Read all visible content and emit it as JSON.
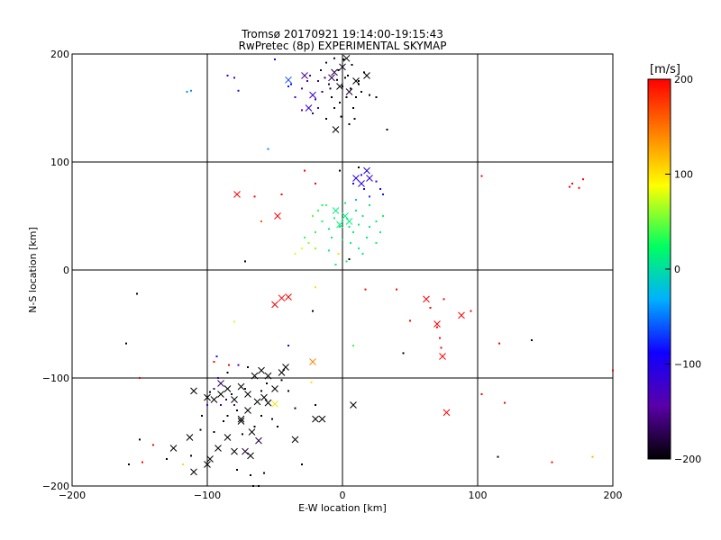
{
  "chart_data": {
    "type": "scatter",
    "title": "Tromsø 20170921 19:14:00-19:15:43",
    "subtitle": "RwPretec (8p) EXPERIMENTAL SKYMAP",
    "xlabel": "E-W location [km]",
    "ylabel": "N-S location [km]",
    "xlim": [
      -200,
      200
    ],
    "ylim": [
      -200,
      200
    ],
    "xticks": [
      -200,
      -100,
      0,
      100,
      200
    ],
    "yticks": [
      -200,
      -100,
      0,
      100,
      200
    ],
    "grid": true,
    "colorbar": {
      "label": "[m/s]",
      "range": [
        -200,
        200
      ],
      "ticks": [
        200,
        100,
        0,
        -100,
        -200
      ],
      "colors": [
        "#000000",
        "#5a00a8",
        "#1000ff",
        "#00b0ff",
        "#00ff60",
        "#ffff00",
        "#ff8000",
        "#ff0000"
      ]
    },
    "markers": {
      "large": "x",
      "small": "dot"
    },
    "points": [
      [
        3,
        196,
        -200,
        1
      ],
      [
        0,
        188,
        -190,
        1
      ],
      [
        -6,
        183,
        -175,
        1
      ],
      [
        10,
        175,
        -200,
        1
      ],
      [
        -2,
        170,
        -200,
        1
      ],
      [
        5,
        165,
        -185,
        1
      ],
      [
        -8,
        178,
        -170,
        1
      ],
      [
        -25,
        150,
        -110,
        1
      ],
      [
        -22,
        162,
        -120,
        1
      ],
      [
        -40,
        176,
        -60,
        1
      ],
      [
        -28,
        180,
        -150,
        1
      ],
      [
        -5,
        130,
        -200,
        1
      ],
      [
        18,
        180,
        -200,
        1
      ],
      [
        -3,
        185,
        -200,
        0
      ],
      [
        2,
        178,
        -200,
        0
      ],
      [
        -10,
        172,
        -185,
        0
      ],
      [
        6,
        168,
        -200,
        0
      ],
      [
        -15,
        165,
        -170,
        0
      ],
      [
        -20,
        158,
        -160,
        0
      ],
      [
        12,
        172,
        -200,
        0
      ],
      [
        -6,
        150,
        -190,
        0
      ],
      [
        -1,
        142,
        -200,
        0
      ],
      [
        8,
        150,
        -200,
        0
      ],
      [
        -12,
        192,
        -180,
        0
      ],
      [
        16,
        183,
        -200,
        0
      ],
      [
        -30,
        168,
        -140,
        0
      ],
      [
        -35,
        160,
        -115,
        0
      ],
      [
        -38,
        172,
        -90,
        0
      ],
      [
        20,
        162,
        -200,
        0
      ],
      [
        25,
        160,
        -200,
        0
      ],
      [
        -12,
        140,
        -200,
        0
      ],
      [
        33,
        130,
        -200,
        0
      ],
      [
        -50,
        195,
        -100,
        0
      ],
      [
        -80,
        178,
        -110,
        0
      ],
      [
        -85,
        180,
        -110,
        0
      ],
      [
        -115,
        165,
        -40,
        0
      ],
      [
        -112,
        166,
        -40,
        0
      ],
      [
        -77,
        166,
        -110,
        0
      ],
      [
        -55,
        112,
        -40,
        0
      ],
      [
        5,
        135,
        -200,
        0
      ],
      [
        -18,
        175,
        -160,
        0
      ],
      [
        -8,
        160,
        -200,
        0
      ],
      [
        0,
        170,
        -200,
        0
      ],
      [
        4,
        180,
        -200,
        0
      ],
      [
        -4,
        176,
        -200,
        0
      ],
      [
        10,
        160,
        -200,
        0
      ],
      [
        -16,
        185,
        -180,
        0
      ],
      [
        -2,
        155,
        -200,
        0
      ],
      [
        14,
        165,
        -200,
        0
      ],
      [
        -22,
        145,
        -170,
        0
      ],
      [
        -26,
        175,
        -150,
        0
      ],
      [
        1,
        195,
        -195,
        0
      ],
      [
        7,
        190,
        -200,
        0
      ],
      [
        -9,
        168,
        -190,
        0
      ],
      [
        -13,
        178,
        -170,
        0
      ],
      [
        3,
        160,
        -200,
        0
      ],
      [
        -6,
        196,
        -190,
        0
      ],
      [
        -30,
        148,
        -140,
        0
      ],
      [
        -40,
        170,
        -80,
        0
      ],
      [
        -18,
        150,
        -110,
        0
      ],
      [
        12,
        175,
        -200,
        0
      ],
      [
        -24,
        180,
        -150,
        0
      ],
      [
        9,
        140,
        -200,
        0
      ],
      [
        14,
        80,
        -110,
        1
      ],
      [
        20,
        85,
        -110,
        1
      ],
      [
        10,
        85,
        -110,
        1
      ],
      [
        18,
        92,
        -100,
        1
      ],
      [
        14,
        88,
        -110,
        0
      ],
      [
        8,
        80,
        -100,
        0
      ],
      [
        16,
        75,
        -100,
        0
      ],
      [
        25,
        82,
        -110,
        0
      ],
      [
        28,
        75,
        -90,
        0
      ],
      [
        30,
        70,
        -80,
        0
      ],
      [
        -2,
        92,
        -200,
        0
      ],
      [
        12,
        95,
        -200,
        0
      ],
      [
        20,
        68,
        -70,
        0
      ],
      [
        2,
        50,
        20,
        1
      ],
      [
        5,
        45,
        20,
        1
      ],
      [
        -2,
        42,
        20,
        1
      ],
      [
        -5,
        55,
        20,
        1
      ],
      [
        0,
        45,
        20,
        0
      ],
      [
        5,
        40,
        20,
        0
      ],
      [
        -10,
        38,
        10,
        0
      ],
      [
        8,
        35,
        20,
        0
      ],
      [
        15,
        50,
        20,
        0
      ],
      [
        20,
        40,
        20,
        0
      ],
      [
        -15,
        45,
        30,
        0
      ],
      [
        10,
        55,
        20,
        0
      ],
      [
        -8,
        30,
        20,
        0
      ],
      [
        18,
        30,
        20,
        0
      ],
      [
        25,
        25,
        30,
        0
      ],
      [
        12,
        20,
        20,
        0
      ],
      [
        0,
        28,
        20,
        0
      ],
      [
        -20,
        35,
        40,
        0
      ],
      [
        -25,
        25,
        60,
        0
      ],
      [
        -30,
        20,
        80,
        0
      ],
      [
        -12,
        60,
        40,
        0
      ],
      [
        -3,
        15,
        100,
        0
      ],
      [
        3,
        8,
        20,
        0
      ],
      [
        -5,
        5,
        20,
        0
      ],
      [
        28,
        35,
        20,
        0
      ],
      [
        30,
        50,
        30,
        0
      ],
      [
        20,
        60,
        10,
        0
      ],
      [
        -18,
        55,
        40,
        0
      ],
      [
        -6,
        48,
        20,
        0
      ],
      [
        6,
        25,
        20,
        0
      ],
      [
        15,
        15,
        20,
        0
      ],
      [
        -22,
        50,
        50,
        0
      ],
      [
        -15,
        60,
        30,
        0
      ],
      [
        10,
        65,
        -20,
        0
      ],
      [
        25,
        45,
        20,
        0
      ],
      [
        -10,
        18,
        20,
        0
      ],
      [
        2,
        62,
        20,
        0
      ],
      [
        -28,
        30,
        40,
        0
      ],
      [
        -20,
        20,
        60,
        0
      ],
      [
        -35,
        15,
        80,
        0
      ],
      [
        -2,
        40,
        20,
        0
      ],
      [
        12,
        42,
        20,
        0
      ],
      [
        -78,
        70,
        200,
        1
      ],
      [
        -48,
        50,
        200,
        1
      ],
      [
        -65,
        68,
        200,
        0
      ],
      [
        -60,
        45,
        160,
        0
      ],
      [
        -45,
        70,
        200,
        0
      ],
      [
        -28,
        92,
        200,
        0
      ],
      [
        -20,
        80,
        200,
        0
      ],
      [
        -72,
        8,
        -200,
        0
      ],
      [
        5,
        10,
        -200,
        0
      ],
      [
        103,
        87,
        200,
        0
      ],
      [
        170,
        80,
        200,
        0
      ],
      [
        178,
        84,
        200,
        0
      ],
      [
        175,
        76,
        200,
        0
      ],
      [
        168,
        77,
        200,
        0
      ],
      [
        -50,
        -32,
        200,
        1
      ],
      [
        -45,
        -26,
        200,
        1
      ],
      [
        -40,
        -25,
        200,
        1
      ],
      [
        62,
        -27,
        200,
        1
      ],
      [
        70,
        -50,
        200,
        1
      ],
      [
        88,
        -42,
        200,
        1
      ],
      [
        74,
        -80,
        200,
        1
      ],
      [
        77,
        -132,
        200,
        1
      ],
      [
        -22,
        -85,
        140,
        1
      ],
      [
        -20,
        -16,
        100,
        0
      ],
      [
        -22,
        -38,
        -200,
        0
      ],
      [
        17,
        -18,
        200,
        0
      ],
      [
        40,
        -18,
        200,
        0
      ],
      [
        50,
        -47,
        200,
        0
      ],
      [
        65,
        -35,
        200,
        0
      ],
      [
        75,
        -27,
        200,
        0
      ],
      [
        70,
        -53,
        200,
        0
      ],
      [
        95,
        -38,
        200,
        0
      ],
      [
        72,
        -63,
        200,
        0
      ],
      [
        116,
        -68,
        200,
        0
      ],
      [
        140,
        -65,
        -200,
        0
      ],
      [
        200,
        -93,
        200,
        0
      ],
      [
        45,
        -77,
        -200,
        0
      ],
      [
        73,
        -72,
        200,
        0
      ],
      [
        -152,
        -22,
        -200,
        0
      ],
      [
        -160,
        -68,
        -200,
        0
      ],
      [
        -150,
        -100,
        200,
        0
      ],
      [
        -80,
        -48,
        80,
        0
      ],
      [
        -77,
        -88,
        -120,
        0
      ],
      [
        -93,
        -80,
        -80,
        0
      ],
      [
        -95,
        -85,
        200,
        0
      ],
      [
        -84,
        -88,
        200,
        0
      ],
      [
        -40,
        -70,
        -100,
        0
      ],
      [
        -23,
        -104,
        100,
        0
      ],
      [
        8,
        -70,
        40,
        0
      ],
      [
        -110,
        -112,
        -200,
        1
      ],
      [
        -100,
        -118,
        -200,
        1
      ],
      [
        -95,
        -120,
        -200,
        1
      ],
      [
        -90,
        -115,
        -200,
        1
      ],
      [
        -85,
        -110,
        -200,
        1
      ],
      [
        -80,
        -120,
        -200,
        1
      ],
      [
        -75,
        -108,
        -200,
        1
      ],
      [
        -70,
        -115,
        -200,
        1
      ],
      [
        -65,
        -98,
        -200,
        1
      ],
      [
        -60,
        -93,
        -200,
        1
      ],
      [
        -55,
        -98,
        -200,
        1
      ],
      [
        -45,
        -95,
        -200,
        1
      ],
      [
        -42,
        -90,
        -200,
        1
      ],
      [
        -50,
        -110,
        -200,
        1
      ],
      [
        -58,
        -118,
        -200,
        1
      ],
      [
        -63,
        -122,
        -200,
        1
      ],
      [
        -70,
        -130,
        -200,
        1
      ],
      [
        -75,
        -138,
        -200,
        1
      ],
      [
        -67,
        -150,
        -200,
        1
      ],
      [
        -62,
        -158,
        -180,
        1
      ],
      [
        -72,
        -168,
        -180,
        1
      ],
      [
        -68,
        -172,
        -200,
        1
      ],
      [
        -80,
        -168,
        -200,
        1
      ],
      [
        -85,
        -155,
        -200,
        1
      ],
      [
        -92,
        -165,
        -200,
        1
      ],
      [
        -98,
        -175,
        -200,
        1
      ],
      [
        -100,
        -180,
        -200,
        1
      ],
      [
        -110,
        -187,
        -200,
        1
      ],
      [
        -125,
        -165,
        -200,
        1
      ],
      [
        -113,
        -155,
        -200,
        1
      ],
      [
        -20,
        -138,
        -200,
        1
      ],
      [
        -15,
        -138,
        -200,
        1
      ],
      [
        8,
        -125,
        -200,
        1
      ],
      [
        -50,
        -124,
        100,
        1
      ],
      [
        -90,
        -105,
        -170,
        1
      ],
      [
        -75,
        -140,
        -200,
        1
      ],
      [
        -55,
        -123,
        -200,
        1
      ],
      [
        -35,
        -157,
        -200,
        1
      ],
      [
        -90,
        -125,
        -150,
        0
      ],
      [
        -85,
        -135,
        -200,
        0
      ],
      [
        -82,
        -115,
        -180,
        0
      ],
      [
        -95,
        -110,
        -160,
        0
      ],
      [
        -78,
        -130,
        -200,
        0
      ],
      [
        -65,
        -145,
        -200,
        0
      ],
      [
        -60,
        -135,
        -200,
        0
      ],
      [
        -52,
        -138,
        -200,
        0
      ],
      [
        -72,
        -110,
        -180,
        0
      ],
      [
        -88,
        -140,
        -200,
        0
      ],
      [
        -95,
        -150,
        -200,
        0
      ],
      [
        -105,
        -148,
        -200,
        0
      ],
      [
        -112,
        -172,
        -200,
        0
      ],
      [
        -78,
        -185,
        -200,
        0
      ],
      [
        -62,
        -200,
        -200,
        0
      ],
      [
        -58,
        -188,
        -200,
        0
      ],
      [
        -68,
        -190,
        -200,
        0
      ],
      [
        -130,
        -175,
        -200,
        0
      ],
      [
        -140,
        -162,
        200,
        0
      ],
      [
        -148,
        -178,
        200,
        0
      ],
      [
        -150,
        -157,
        -200,
        0
      ],
      [
        -158,
        -180,
        -200,
        0
      ],
      [
        -118,
        -180,
        100,
        0
      ],
      [
        -100,
        -125,
        -120,
        0
      ],
      [
        -80,
        -125,
        -150,
        0
      ],
      [
        -56,
        -105,
        -200,
        0
      ],
      [
        -40,
        -112,
        -200,
        0
      ],
      [
        -45,
        -102,
        -200,
        0
      ],
      [
        -20,
        -125,
        -200,
        0
      ],
      [
        -30,
        -180,
        -200,
        0
      ],
      [
        -92,
        -100,
        -120,
        0
      ],
      [
        -70,
        -90,
        -200,
        0
      ],
      [
        -85,
        -95,
        -200,
        0
      ],
      [
        -66,
        -200,
        -200,
        0
      ],
      [
        103,
        -115,
        200,
        0
      ],
      [
        115,
        -173,
        -200,
        0
      ],
      [
        120,
        -123,
        200,
        0
      ],
      [
        155,
        -178,
        200,
        0
      ],
      [
        185,
        -173,
        120,
        0
      ],
      [
        -98,
        -113,
        -200,
        0
      ],
      [
        -86,
        -120,
        -170,
        0
      ],
      [
        -74,
        -152,
        -200,
        0
      ],
      [
        -104,
        -135,
        -200,
        0
      ],
      [
        -60,
        -112,
        -200,
        0
      ],
      [
        -35,
        -128,
        -200,
        0
      ],
      [
        -48,
        -145,
        -200,
        0
      ]
    ]
  }
}
